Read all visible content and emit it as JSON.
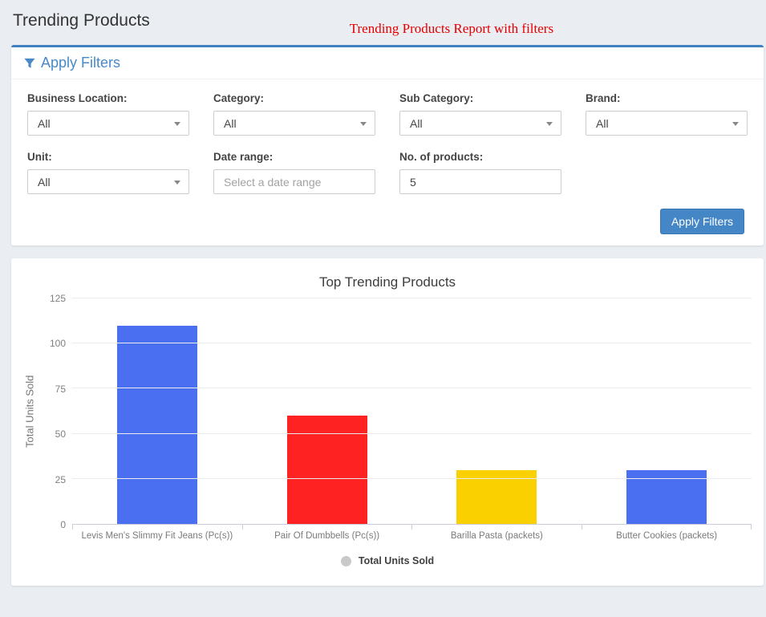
{
  "header": {
    "title": "Trending Products",
    "annotation": "Trending Products Report with filters"
  },
  "filters": {
    "panel_title": "Apply Filters",
    "business_location": {
      "label": "Business Location:",
      "value": "All"
    },
    "category": {
      "label": "Category:",
      "value": "All"
    },
    "sub_category": {
      "label": "Sub Category:",
      "value": "All"
    },
    "brand": {
      "label": "Brand:",
      "value": "All"
    },
    "unit": {
      "label": "Unit:",
      "value": "All"
    },
    "date_range": {
      "label": "Date range:",
      "placeholder": "Select a date range"
    },
    "no_of_products": {
      "label": "No. of products:",
      "value": "5"
    },
    "apply_button_label": "Apply Filters"
  },
  "chart_data": {
    "type": "bar",
    "title": "Top Trending Products",
    "xlabel": "",
    "ylabel": "Total Units Sold",
    "categories": [
      "Levis Men's Slimmy Fit Jeans (Pc(s))",
      "Pair Of Dumbbells (Pc(s))",
      "Barilla Pasta (packets)",
      "Butter Cookies (packets)"
    ],
    "values": [
      110,
      60,
      30,
      30
    ],
    "colors": [
      "#4a6ff0",
      "#fe2222",
      "#fad000",
      "#4a6ff0"
    ],
    "ylim": [
      0,
      125
    ],
    "yticks": [
      0,
      25,
      50,
      75,
      100,
      125
    ],
    "grid": true,
    "legend": {
      "position": "bottom",
      "items": [
        {
          "label": "Total Units Sold",
          "color": "#c9c9c9"
        }
      ]
    }
  },
  "colors": {
    "button_blue": "#4486c6",
    "panel_top_border": "#3f81c1",
    "link_blue": "#4889c8"
  }
}
